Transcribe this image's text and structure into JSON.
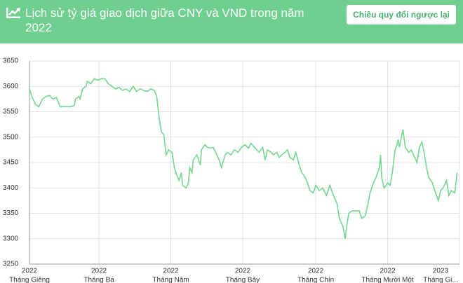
{
  "button": "Chiều quy đổi ngược lại",
  "chart_data": {
    "type": "line",
    "title": "Lịch sử tỷ giá giao dịch giữa CNY và VND trong năm 2022",
    "color": "#74d690",
    "grid": true,
    "xlim": [
      0,
      365
    ],
    "ylim": [
      3250,
      3650
    ],
    "yticks": [
      3250,
      3300,
      3350,
      3400,
      3450,
      3500,
      3550,
      3600,
      3650
    ],
    "xticks": [
      {
        "value": 0,
        "year": "2022",
        "label": "Tháng Giêng"
      },
      {
        "value": 59,
        "year": "2022",
        "label": "Tháng Ba"
      },
      {
        "value": 120,
        "year": "2022",
        "label": "Tháng Năm"
      },
      {
        "value": 181,
        "year": "2022",
        "label": "Tháng Bảy"
      },
      {
        "value": 243,
        "year": "2022",
        "label": "Tháng Chín"
      },
      {
        "value": 304,
        "year": "2022",
        "label": "Tháng Mười Một"
      },
      {
        "value": 365,
        "year": "2023",
        "label": "Tháng Gi..."
      }
    ],
    "x": [
      0,
      2,
      5,
      8,
      11,
      14,
      17,
      20,
      23,
      26,
      29,
      35,
      38,
      39,
      42,
      43,
      45,
      48,
      49,
      52,
      55,
      58,
      61,
      64,
      67,
      70,
      73,
      76,
      79,
      82,
      85,
      88,
      91,
      94,
      97,
      100,
      103,
      106,
      108,
      110,
      112,
      114,
      116,
      118,
      121,
      123,
      125,
      127,
      129,
      130,
      133,
      135,
      136,
      138,
      139,
      142,
      145,
      146,
      149,
      151,
      154,
      156,
      158,
      161,
      163,
      166,
      168,
      171,
      174,
      177,
      180,
      183,
      186,
      188,
      191,
      193,
      195,
      198,
      200,
      202,
      205,
      207,
      210,
      212,
      214,
      217,
      219,
      221,
      224,
      226,
      229,
      231,
      233,
      236,
      238,
      241,
      243,
      246,
      249,
      252,
      255,
      258,
      261,
      263,
      266,
      268,
      269,
      271,
      274,
      277,
      280,
      282,
      285,
      287,
      289,
      292,
      294,
      297,
      298,
      299,
      301,
      304,
      306,
      308,
      310,
      313,
      314,
      317,
      319,
      322,
      324,
      326,
      329,
      331,
      333,
      335,
      337,
      339,
      342,
      344,
      347,
      349,
      351,
      354,
      356,
      358,
      361,
      362,
      363
    ],
    "values": [
      3595,
      3580,
      3565,
      3560,
      3575,
      3580,
      3582,
      3575,
      3578,
      3560,
      3560,
      3560,
      3562,
      3575,
      3580,
      3575,
      3595,
      3600,
      3610,
      3605,
      3615,
      3612,
      3615,
      3615,
      3605,
      3600,
      3595,
      3598,
      3592,
      3595,
      3590,
      3600,
      3590,
      3595,
      3592,
      3590,
      3595,
      3592,
      3580,
      3540,
      3510,
      3505,
      3465,
      3475,
      3470,
      3440,
      3425,
      3415,
      3430,
      3405,
      3400,
      3410,
      3440,
      3430,
      3455,
      3465,
      3445,
      3475,
      3485,
      3480,
      3478,
      3480,
      3470,
      3455,
      3440,
      3465,
      3470,
      3465,
      3475,
      3470,
      3480,
      3485,
      3478,
      3488,
      3480,
      3475,
      3470,
      3480,
      3455,
      3475,
      3470,
      3465,
      3470,
      3460,
      3465,
      3470,
      3475,
      3460,
      3455,
      3470,
      3445,
      3430,
      3425,
      3410,
      3395,
      3390,
      3405,
      3395,
      3400,
      3385,
      3405,
      3385,
      3370,
      3340,
      3325,
      3300,
      3320,
      3350,
      3355,
      3355,
      3355,
      3340,
      3345,
      3365,
      3390,
      3410,
      3420,
      3440,
      3465,
      3420,
      3400,
      3410,
      3405,
      3430,
      3470,
      3495,
      3480,
      3515,
      3480,
      3470,
      3475,
      3465,
      3450,
      3480,
      3490,
      3470,
      3440,
      3420,
      3410,
      3395,
      3375,
      3395,
      3400,
      3415,
      3385,
      3395,
      3390,
      3410,
      3430
    ]
  }
}
